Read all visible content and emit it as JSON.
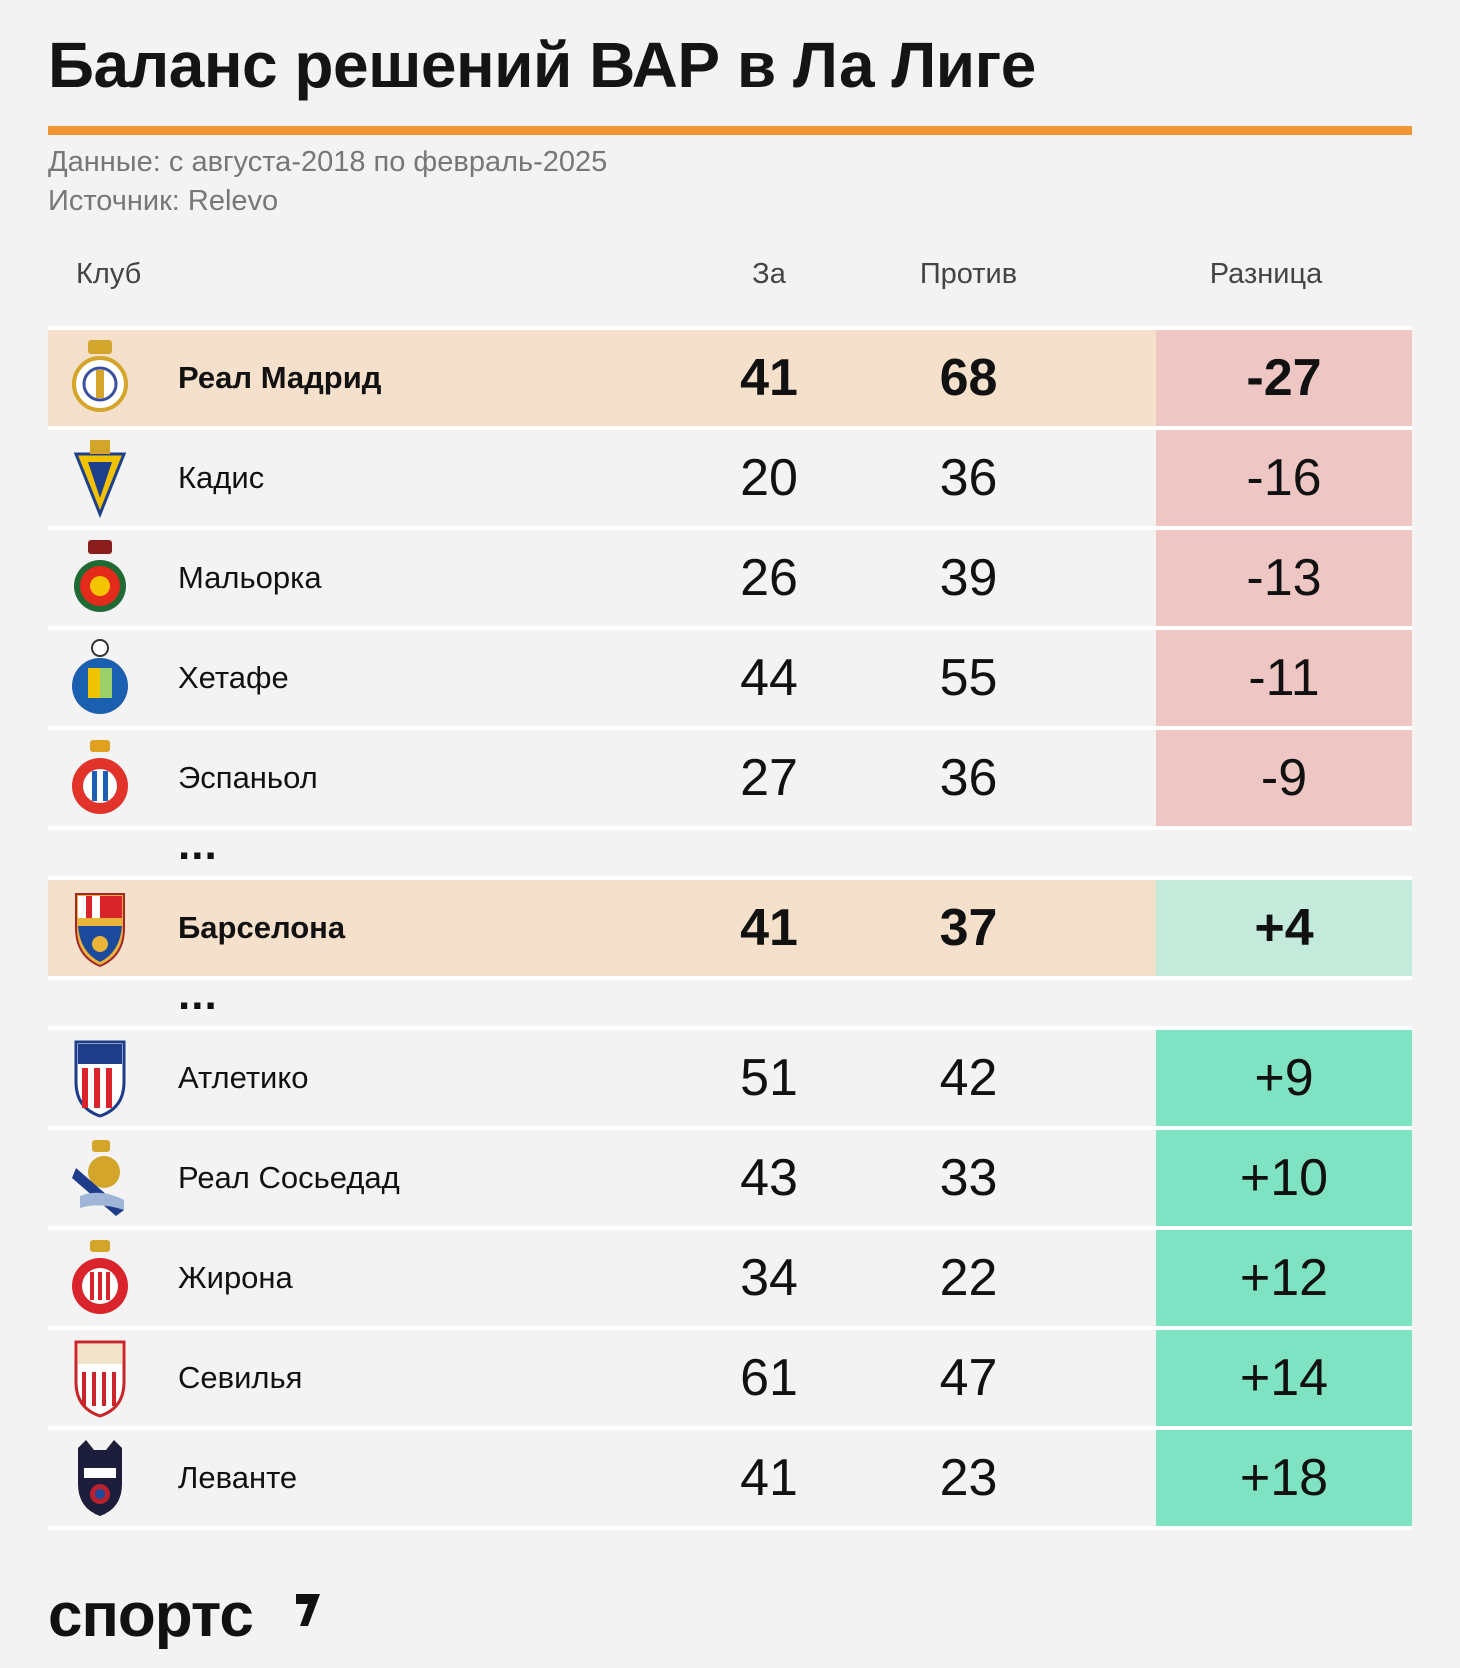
{
  "title": "Баланс решений ВАР в Ла Лиге",
  "meta": {
    "data_period": "Данные: с августа-2018 по февраль-2025",
    "source": "Источник: Relevo"
  },
  "chart_data": {
    "type": "table",
    "columns": [
      "Клуб",
      "За",
      "Против",
      "Разница"
    ],
    "rows": [
      {
        "club": "Реал Мадрид",
        "for": "41",
        "against": "68",
        "diff": "-27",
        "highlight": true,
        "tone": "neg",
        "logo": "real-madrid-crest-icon"
      },
      {
        "club": "Кадис",
        "for": "20",
        "against": "36",
        "diff": "-16",
        "highlight": false,
        "tone": "neg",
        "logo": "cadiz-crest-icon"
      },
      {
        "club": "Мальорка",
        "for": "26",
        "against": "39",
        "diff": "-13",
        "highlight": false,
        "tone": "neg",
        "logo": "mallorca-crest-icon"
      },
      {
        "club": "Хетафе",
        "for": "44",
        "against": "55",
        "diff": "-11",
        "highlight": false,
        "tone": "neg",
        "logo": "getafe-crest-icon"
      },
      {
        "club": "Эспаньол",
        "for": "27",
        "against": "36",
        "diff": "-9",
        "highlight": false,
        "tone": "neg",
        "logo": "espanyol-crest-icon"
      },
      {
        "club": "Барселона",
        "for": "41",
        "against": "37",
        "diff": "+4",
        "highlight": true,
        "tone": "pos-light",
        "logo": "barcelona-crest-icon"
      },
      {
        "club": "Атлетико",
        "for": "51",
        "against": "42",
        "diff": "+9",
        "highlight": false,
        "tone": "pos",
        "logo": "atletico-crest-icon"
      },
      {
        "club": "Реал Сосьедад",
        "for": "43",
        "against": "33",
        "diff": "+10",
        "highlight": false,
        "tone": "pos",
        "logo": "real-sociedad-crest-icon"
      },
      {
        "club": "Жирона",
        "for": "34",
        "against": "22",
        "diff": "+12",
        "highlight": false,
        "tone": "pos",
        "logo": "girona-crest-icon"
      },
      {
        "club": "Севилья",
        "for": "61",
        "against": "47",
        "diff": "+14",
        "highlight": false,
        "tone": "pos",
        "logo": "sevilla-crest-icon"
      },
      {
        "club": "Леванте",
        "for": "41",
        "against": "23",
        "diff": "+18",
        "highlight": false,
        "tone": "pos",
        "logo": "levante-crest-icon"
      }
    ],
    "ellipsis": "..."
  },
  "colors": {
    "accent": "#f39436",
    "highlight_row": "#f5e0cb",
    "negative": "#eec7c5",
    "positive_light": "#c3eadb",
    "positive": "#7fe3c3"
  },
  "brand": "спортс"
}
